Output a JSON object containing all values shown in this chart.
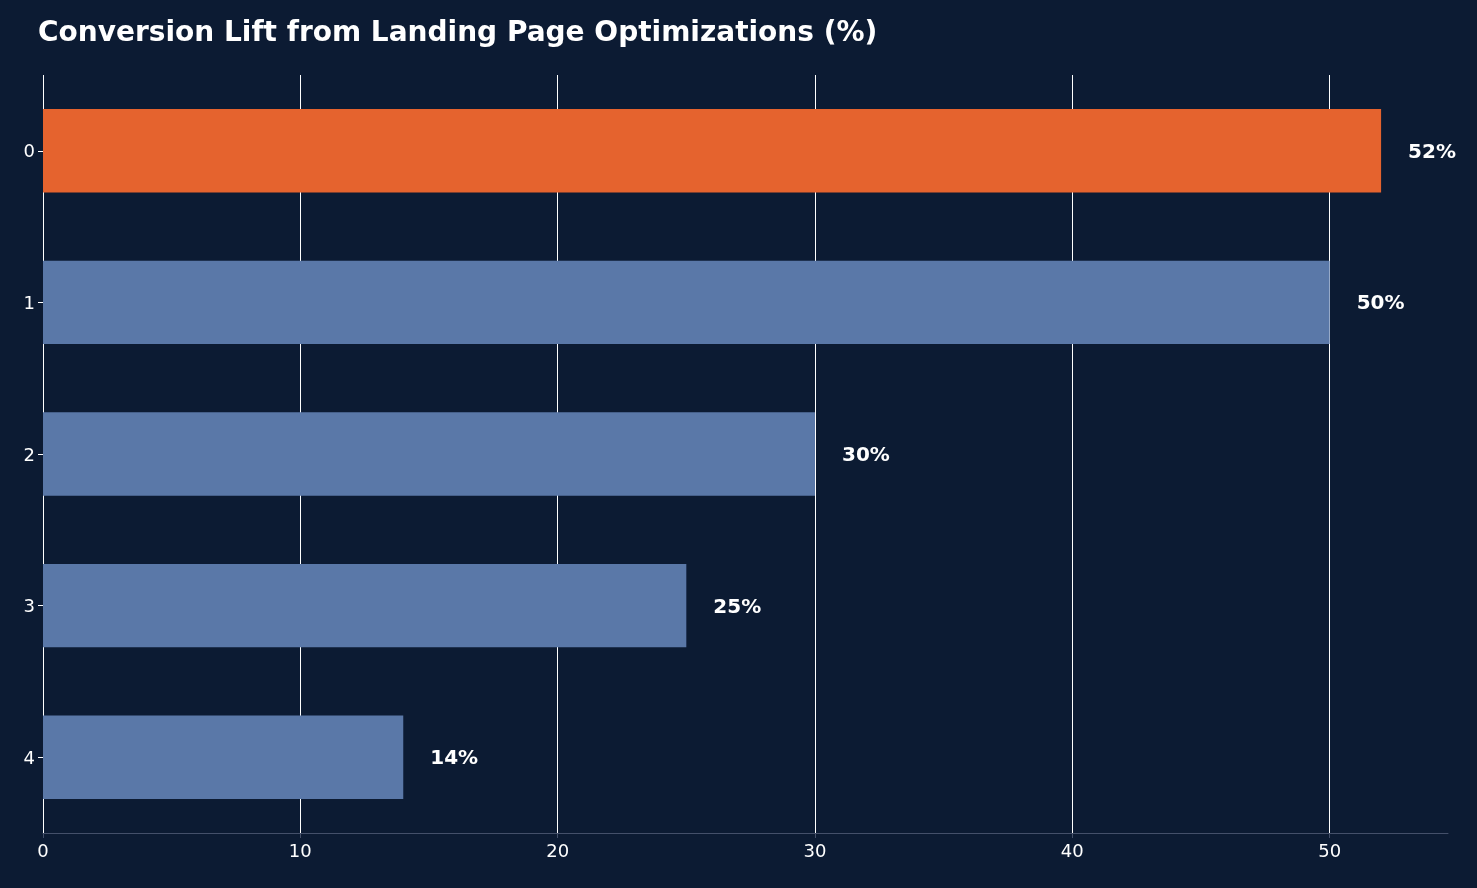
{
  "chart_data": {
    "type": "bar",
    "orientation": "horizontal",
    "title": "Conversion Lift from Landing Page Optimizations (%)",
    "categories": [
      "0",
      "1",
      "2",
      "3",
      "4"
    ],
    "values": [
      52,
      50,
      30,
      25,
      14
    ],
    "colors": [
      "#e5632e",
      "#5a78a8",
      "#5a78a8",
      "#5a78a8",
      "#5a78a8"
    ],
    "value_labels": [
      "52%",
      "50%",
      "30%",
      "25%",
      "14%"
    ],
    "xlim": [
      0,
      54.6
    ],
    "xticks": [
      0,
      10,
      20,
      30,
      40,
      50
    ],
    "grid": "x"
  }
}
